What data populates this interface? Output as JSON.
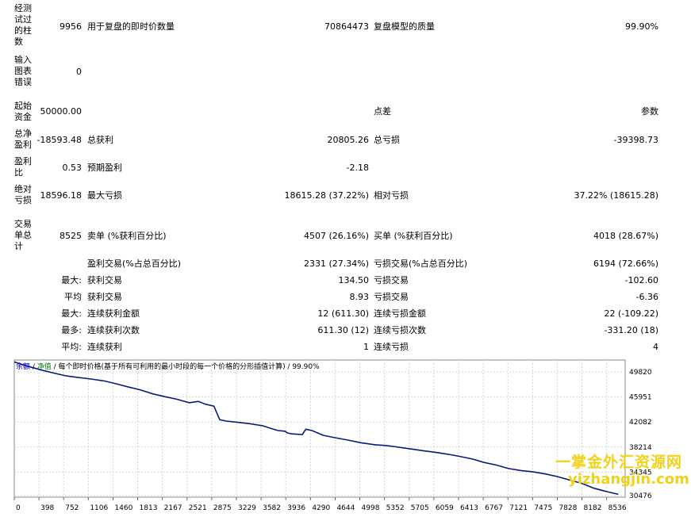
{
  "report": {
    "bars_label": "经测试过的柱数",
    "bars_value": "9956",
    "ticks_label": "用于复盘的即时价数量",
    "ticks_value": "70864473",
    "quality_label": "复盘模型的质量",
    "quality_value": "99.90%",
    "errors_label": "输入图表错误",
    "errors_value": "0",
    "deposit_label": "起始资金",
    "deposit_value": "50000.00",
    "spread_label": "点差",
    "spread_value": "参数",
    "net_label": "总净盈利",
    "net_value": "-18593.48",
    "gross_profit_label": "总获利",
    "gross_profit_value": "20805.26",
    "gross_loss_label": "总亏损",
    "gross_loss_value": "-39398.73",
    "pf_label": "盈利比",
    "pf_value": "0.53",
    "payoff_label": "预期盈利",
    "payoff_value": "-2.18",
    "abs_dd_label": "绝对亏损",
    "abs_dd_value": "18596.18",
    "max_dd_label": "最大亏损",
    "max_dd_value": "18615.28 (37.22%)",
    "rel_dd_label": "相对亏损",
    "rel_dd_value": "37.22% (18615.28)",
    "trades_label": "交易单总计",
    "trades_value": "8525",
    "short_label": "卖单 (%获利百分比)",
    "short_value": "4507 (26.16%)",
    "long_label": "买单 (%获利百分比)",
    "long_value": "4018 (28.67%)",
    "profit_trades_label": "盈利交易(%占总百分比)",
    "profit_trades_value": "2331 (27.34%)",
    "loss_trades_label": "亏损交易(%占总百分比)",
    "loss_trades_value": "6194 (72.66%)",
    "max_prefix": "最大:",
    "avg_prefix": "平均",
    "max_prefix2": "最大:",
    "most_prefix": "最多:",
    "avg_prefix2": "平均:",
    "largest_profit_label": "获利交易",
    "largest_profit_value": "134.50",
    "largest_loss_label": "亏损交易",
    "largest_loss_value": "-102.60",
    "average_profit_label": "获利交易",
    "average_profit_value": "8.93",
    "average_loss_label": "亏损交易",
    "average_loss_value": "-6.36",
    "max_consec_win_amt_label": "连续获利金额",
    "max_consec_win_amt_value": "12 (611.30)",
    "max_consec_loss_amt_label": "连续亏损金额",
    "max_consec_loss_amt_value": "22 (-109.22)",
    "max_consec_win_cnt_label": "连续获利次数",
    "max_consec_win_cnt_value": "611.30 (12)",
    "max_consec_loss_cnt_label": "连续亏损次数",
    "max_consec_loss_cnt_value": "-331.20 (18)",
    "avg_consec_win_label": "连续获利",
    "avg_consec_win_value": "1",
    "avg_consec_loss_label": "连续亏损",
    "avg_consec_loss_value": "4"
  },
  "legend": {
    "balance": "余额",
    "sep1": " / ",
    "equity": "净值",
    "rest": " / 每个即时价格(基于所有可利用的最小时段的每一个价格的分形插值计算) / 99.90%"
  },
  "colors": {
    "balance": "#0000cc",
    "equity": "#007a00",
    "line": "#0b1a7a",
    "watermark": "#f1d21a"
  },
  "watermark": {
    "line1": "一掌金外汇资源网",
    "line2": "yizhangjin.com"
  },
  "chart_data": {
    "type": "line",
    "title": "",
    "xlabel": "",
    "ylabel": "",
    "x_ticks": [
      "0",
      "398",
      "752",
      "1106",
      "1460",
      "1813",
      "2167",
      "2521",
      "2875",
      "3229",
      "3582",
      "3936",
      "4290",
      "4644",
      "4998",
      "5352",
      "5705",
      "6059",
      "6413",
      "6767",
      "7121",
      "7475",
      "7828",
      "8182",
      "8536"
    ],
    "y_ticks": [
      "49820",
      "45951",
      "42082",
      "38214",
      "34345",
      "30476"
    ],
    "xlim": [
      0,
      8800
    ],
    "ylim": [
      30476,
      50700
    ],
    "grid": true,
    "series": [
      {
        "x": [
          0,
          150,
          398,
          600,
          752,
          900,
          1106,
          1300,
          1460,
          1650,
          1813,
          2000,
          2167,
          2350,
          2521,
          2650,
          2750,
          2875,
          2960,
          3050,
          3229,
          3400,
          3582,
          3700,
          3800,
          3900,
          3936,
          4000,
          4150,
          4200,
          4290,
          4450,
          4644,
          4800,
          4998,
          5200,
          5352,
          5500,
          5705,
          5900,
          6059,
          6250,
          6413,
          6600,
          6767,
          6950,
          7121,
          7300,
          7475,
          7650,
          7828,
          8000,
          8182,
          8350,
          8536,
          8700
        ],
        "y": [
          50420,
          49900,
          49200,
          48700,
          48350,
          48150,
          47900,
          47600,
          47200,
          46700,
          46300,
          45700,
          45300,
          44900,
          44400,
          44600,
          44200,
          43900,
          41900,
          41700,
          41500,
          41300,
          41000,
          40600,
          40300,
          40200,
          39950,
          39800,
          39700,
          40500,
          40300,
          39600,
          39200,
          38900,
          38500,
          38200,
          38100,
          37900,
          37600,
          37300,
          37100,
          36800,
          36500,
          36100,
          35600,
          35200,
          34700,
          34400,
          34200,
          33900,
          33500,
          33000,
          32500,
          31800,
          31300,
          30900
        ]
      }
    ]
  }
}
